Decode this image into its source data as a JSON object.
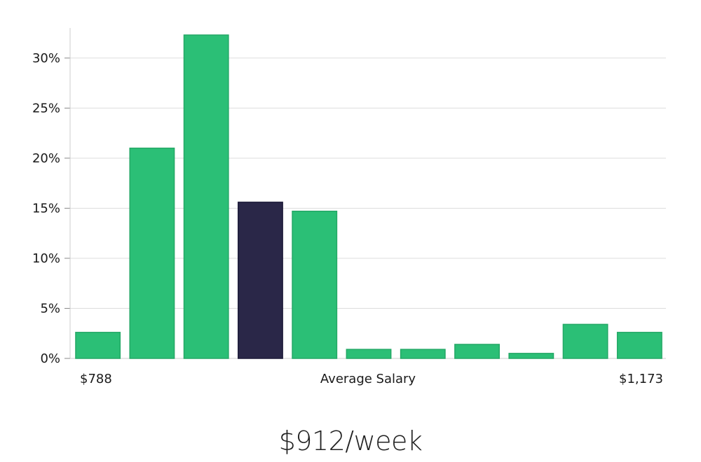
{
  "chart_data": {
    "type": "bar",
    "title": "",
    "xlabel": "Average Salary",
    "ylabel": "",
    "ylim": [
      0,
      33
    ],
    "yticks": [
      0,
      5,
      10,
      15,
      20,
      25,
      30
    ],
    "ytick_labels": [
      "0%",
      "5%",
      "10%",
      "15%",
      "20%",
      "25%",
      "30%"
    ],
    "x_start_label": "$788",
    "x_end_label": "$1,173",
    "values": [
      2.6,
      21.0,
      32.3,
      15.6,
      14.7,
      0.9,
      0.9,
      1.4,
      0.5,
      3.4,
      2.6
    ],
    "highlight_index": 3,
    "grid": true,
    "colors": {
      "bar": "#2bbf76",
      "bar_border": "#24a866",
      "highlight": "#2a2748",
      "grid": "#dddddd",
      "axis": "#cccccc"
    }
  },
  "summary": {
    "salary_text": "$912/week"
  }
}
